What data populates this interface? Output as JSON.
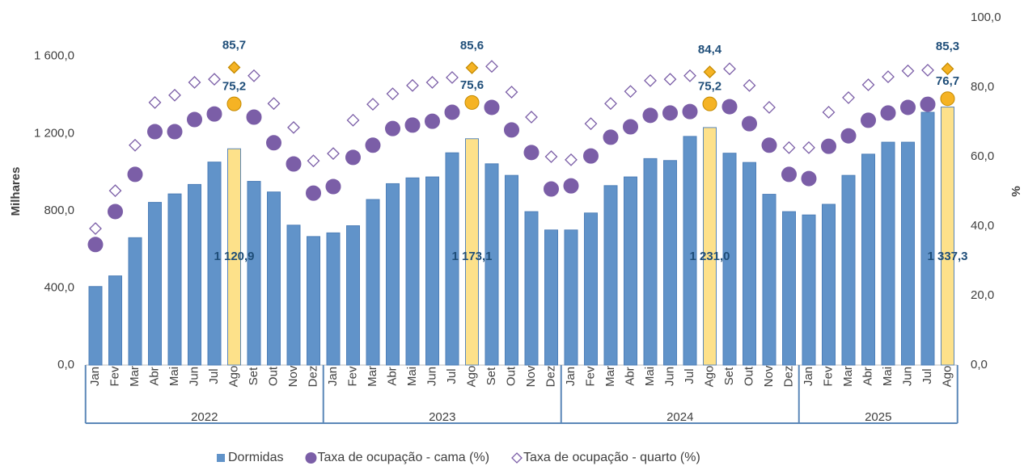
{
  "chart_data": {
    "type": "bar_line",
    "groups": [
      {
        "name": "2022",
        "categories": [
          "Jan",
          "Fev",
          "Mar",
          "Abr",
          "Mai",
          "Jun",
          "Jul",
          "Ago",
          "Set",
          "Out",
          "Nov",
          "Dez"
        ]
      },
      {
        "name": "2023",
        "categories": [
          "Jan",
          "Fev",
          "Mar",
          "Abr",
          "Mai",
          "Jun",
          "Jul",
          "Ago",
          "Set",
          "Out",
          "Nov",
          "Dez"
        ]
      },
      {
        "name": "2024",
        "categories": [
          "Jan",
          "Fev",
          "Mar",
          "Abr",
          "Mai",
          "Jun",
          "Jul",
          "Ago",
          "Set",
          "Out",
          "Nov",
          "Dez"
        ]
      },
      {
        "name": "2025",
        "categories": [
          "Jan",
          "Fev",
          "Mar",
          "Abr",
          "Mai",
          "Jun",
          "Jul",
          "Ago"
        ]
      }
    ],
    "ylabel": "Milhares",
    "y2label": "%",
    "ylim": [
      0,
      1800
    ],
    "yticks": [
      {
        "value": 0,
        "label": "0,0"
      },
      {
        "value": 400,
        "label": "400,0"
      },
      {
        "value": 800,
        "label": "800,0"
      },
      {
        "value": 1200,
        "label": "1 200,0"
      },
      {
        "value": 1600,
        "label": "1 600,0"
      }
    ],
    "y2lim": [
      0,
      100
    ],
    "y2ticks": [
      {
        "value": 0,
        "label": "0,0"
      },
      {
        "value": 20,
        "label": "20,0"
      },
      {
        "value": 40,
        "label": "40,0"
      },
      {
        "value": 60,
        "label": "60,0"
      },
      {
        "value": 80,
        "label": "80,0"
      },
      {
        "value": 100,
        "label": "100,0"
      }
    ],
    "series": [
      {
        "name": "Dormidas",
        "kind": "bar",
        "color": "#6193c9",
        "highlight_color": "#fde18a",
        "values": [
          407,
          462,
          660,
          843,
          887,
          936,
          1052,
          1120.9,
          952,
          897,
          725,
          666,
          685,
          722,
          858,
          940,
          970,
          975,
          1100,
          1173.1,
          1043,
          983,
          795,
          700,
          700,
          788,
          930,
          975,
          1070,
          1060,
          1185,
          1231.0,
          1098,
          1050,
          885,
          795,
          778,
          833,
          983,
          1093,
          1155,
          1155,
          1310,
          1337.3
        ],
        "value_labels": [
          null,
          null,
          null,
          null,
          null,
          null,
          null,
          "1 120,9",
          null,
          null,
          null,
          null,
          null,
          null,
          null,
          null,
          null,
          null,
          null,
          "1 173,1",
          null,
          null,
          null,
          null,
          null,
          null,
          null,
          null,
          null,
          null,
          null,
          "1 231,0",
          null,
          null,
          null,
          null,
          null,
          null,
          null,
          null,
          null,
          null,
          null,
          "1 337,3"
        ]
      },
      {
        "name": "Taxa de ocupação - cama (%)",
        "kind": "circle",
        "axis": "y2",
        "color": "#7b5ea7",
        "highlight_color": "#f5b324",
        "values": [
          34.7,
          44.2,
          54.9,
          67.2,
          67.2,
          70.7,
          72.3,
          75.2,
          71.4,
          64.0,
          57.9,
          49.5,
          51.4,
          59.8,
          63.3,
          68.1,
          69.1,
          70.2,
          72.8,
          75.6,
          74.2,
          67.7,
          61.2,
          50.7,
          51.6,
          60.2,
          65.6,
          68.6,
          71.9,
          72.6,
          73.0,
          75.2,
          74.4,
          69.5,
          63.3,
          54.9,
          53.7,
          63.0,
          66.0,
          70.5,
          72.6,
          74.2,
          75.1,
          76.7
        ],
        "value_labels": [
          null,
          null,
          null,
          null,
          null,
          null,
          null,
          "75,2",
          null,
          null,
          null,
          null,
          null,
          null,
          null,
          null,
          null,
          null,
          null,
          "75,6",
          null,
          null,
          null,
          null,
          null,
          null,
          null,
          null,
          null,
          null,
          null,
          "75,2",
          null,
          null,
          null,
          null,
          null,
          null,
          null,
          null,
          null,
          null,
          null,
          "76,7"
        ]
      },
      {
        "name": "Taxa de ocupação - quarto (%)",
        "kind": "diamond",
        "axis": "y2",
        "color": "#7b5ea7",
        "highlight_color": "#f5b324",
        "values": [
          39.3,
          50.2,
          63.3,
          75.6,
          77.7,
          81.4,
          82.3,
          85.7,
          83.3,
          75.3,
          68.4,
          58.8,
          60.9,
          70.5,
          75.1,
          78.1,
          80.5,
          81.4,
          82.8,
          85.6,
          86.0,
          78.6,
          71.4,
          60.0,
          59.1,
          69.5,
          75.3,
          78.8,
          81.9,
          82.3,
          83.3,
          84.4,
          85.3,
          80.5,
          74.2,
          62.6,
          62.6,
          72.8,
          77.0,
          80.7,
          83.0,
          84.7,
          84.9,
          85.3
        ],
        "value_labels": [
          null,
          null,
          null,
          null,
          null,
          null,
          null,
          "85,7",
          null,
          null,
          null,
          null,
          null,
          null,
          null,
          null,
          null,
          null,
          null,
          "85,6",
          null,
          null,
          null,
          null,
          null,
          null,
          null,
          null,
          null,
          null,
          null,
          "84,4",
          null,
          null,
          null,
          null,
          null,
          null,
          null,
          null,
          null,
          null,
          null,
          "85,3"
        ]
      }
    ]
  }
}
